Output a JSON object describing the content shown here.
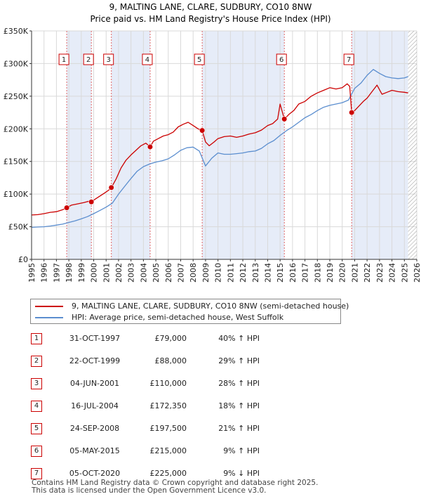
{
  "chart_data": {
    "type": "line",
    "title": "9, MALTING LANE, CLARE, SUDBURY, CO10 8NW",
    "subtitle": "Price paid vs. HM Land Registry's House Price Index (HPI)",
    "xlabel": "",
    "ylabel": "",
    "xlim": [
      1995,
      2026
    ],
    "ylim": [
      0,
      350000
    ],
    "y_ticks": [
      0,
      50000,
      100000,
      150000,
      200000,
      250000,
      300000,
      350000
    ],
    "y_tick_labels": [
      "£0",
      "£50K",
      "£100K",
      "£150K",
      "£200K",
      "£250K",
      "£300K",
      "£350K"
    ],
    "x_ticks": [
      1995,
      1996,
      1997,
      1998,
      1999,
      2000,
      2001,
      2002,
      2003,
      2004,
      2005,
      2006,
      2007,
      2008,
      2009,
      2010,
      2011,
      2012,
      2013,
      2014,
      2015,
      2016,
      2017,
      2018,
      2019,
      2020,
      2021,
      2022,
      2023,
      2024,
      2025,
      2026
    ],
    "grid": true,
    "series": [
      {
        "name": "9, MALTING LANE, CLARE, SUDBURY, CO10 8NW (semi-detached house)",
        "color": "#cc0000",
        "x": [
          1995.0,
          1995.5,
          1996.0,
          1996.5,
          1997.0,
          1997.5,
          1997.83,
          1998.2,
          1998.7,
          1999.2,
          1999.6,
          1999.81,
          2000.1,
          2000.5,
          2000.9,
          2001.2,
          2001.42,
          2001.8,
          2002.2,
          2002.6,
          2003.0,
          2003.4,
          2003.8,
          2004.2,
          2004.54,
          2004.8,
          2005.2,
          2005.6,
          2006.0,
          2006.4,
          2006.8,
          2007.2,
          2007.6,
          2008.0,
          2008.4,
          2008.73,
          2009.0,
          2009.3,
          2009.7,
          2010.0,
          2010.5,
          2011.0,
          2011.5,
          2012.0,
          2012.5,
          2013.0,
          2013.5,
          2014.0,
          2014.4,
          2014.8,
          2015.0,
          2015.34,
          2015.7,
          2016.1,
          2016.5,
          2017.0,
          2017.5,
          2018.0,
          2018.5,
          2019.0,
          2019.5,
          2020.0,
          2020.4,
          2020.6,
          2020.76,
          2021.0,
          2021.3,
          2021.7,
          2022.0,
          2022.4,
          2022.8,
          2023.2,
          2023.6,
          2024.0,
          2024.5,
          2025.0,
          2025.3
        ],
        "y": [
          68000,
          68500,
          70000,
          72000,
          73000,
          76000,
          79000,
          83000,
          85000,
          87000,
          89000,
          88000,
          92000,
          97000,
          102000,
          106000,
          110000,
          123000,
          140000,
          152000,
          160000,
          167000,
          174000,
          178000,
          172350,
          181000,
          185000,
          189000,
          191000,
          195000,
          203000,
          207000,
          210000,
          205000,
          200000,
          197500,
          180000,
          174000,
          180000,
          185000,
          188000,
          189000,
          187000,
          189000,
          192000,
          194000,
          198000,
          205000,
          208000,
          215000,
          238000,
          215000,
          222000,
          228000,
          238000,
          242000,
          250000,
          255000,
          259000,
          263000,
          261000,
          263000,
          269000,
          265000,
          225000,
          228000,
          234000,
          242000,
          247000,
          257000,
          267000,
          253000,
          256000,
          259000,
          257000,
          256000,
          255000
        ]
      },
      {
        "name": "HPI: Average price, semi-detached house, West Suffolk",
        "color": "#5b8ecf",
        "x": [
          1995.0,
          1995.5,
          1996.0,
          1996.5,
          1997.0,
          1997.5,
          1998.0,
          1998.5,
          1999.0,
          1999.5,
          2000.0,
          2000.5,
          2001.0,
          2001.5,
          2002.0,
          2002.5,
          2003.0,
          2003.5,
          2004.0,
          2004.5,
          2005.0,
          2005.5,
          2006.0,
          2006.5,
          2007.0,
          2007.5,
          2008.0,
          2008.5,
          2009.0,
          2009.5,
          2010.0,
          2010.5,
          2011.0,
          2011.5,
          2012.0,
          2012.5,
          2013.0,
          2013.5,
          2014.0,
          2014.5,
          2015.0,
          2015.5,
          2016.0,
          2016.5,
          2017.0,
          2017.5,
          2018.0,
          2018.5,
          2019.0,
          2019.5,
          2020.0,
          2020.5,
          2021.0,
          2021.5,
          2022.0,
          2022.5,
          2023.0,
          2023.5,
          2024.0,
          2024.5,
          2025.0,
          2025.3
        ],
        "y": [
          49000,
          49500,
          50000,
          51000,
          52500,
          54000,
          56500,
          59000,
          62000,
          65500,
          70000,
          75000,
          80000,
          86000,
          100000,
          112000,
          124000,
          135000,
          142000,
          146000,
          149000,
          151000,
          154000,
          160000,
          167000,
          171000,
          172000,
          166000,
          143000,
          155000,
          163000,
          161000,
          161000,
          162000,
          163000,
          165000,
          166000,
          170000,
          177000,
          182000,
          190000,
          197000,
          203000,
          210000,
          217000,
          222000,
          228000,
          233000,
          236000,
          238000,
          240000,
          244000,
          262000,
          270000,
          282000,
          291000,
          285000,
          280000,
          278000,
          277000,
          278000,
          280000
        ]
      }
    ],
    "sales": [
      {
        "label": "1",
        "x": 1997.83,
        "y": 79000
      },
      {
        "label": "2",
        "x": 1999.81,
        "y": 88000
      },
      {
        "label": "3",
        "x": 2001.42,
        "y": 110000
      },
      {
        "label": "4",
        "x": 2004.54,
        "y": 172350
      },
      {
        "label": "5",
        "x": 2008.73,
        "y": 197500
      },
      {
        "label": "6",
        "x": 2015.34,
        "y": 215000
      },
      {
        "label": "7",
        "x": 2020.76,
        "y": 225000
      }
    ],
    "shaded_ranges": [
      [
        1997.83,
        1999.81
      ],
      [
        2001.42,
        2004.54
      ],
      [
        2008.73,
        2015.34
      ],
      [
        2020.76,
        2025.3
      ]
    ],
    "hatched_range": [
      2025.3,
      2026
    ]
  },
  "legend": {
    "property": "9, MALTING LANE, CLARE, SUDBURY, CO10 8NW (semi-detached house)",
    "hpi": "HPI: Average price, semi-detached house, West Suffolk"
  },
  "sales_table": [
    {
      "num": "1",
      "date": "31-OCT-1997",
      "price": "£79,000",
      "hpi": "40% ↑ HPI"
    },
    {
      "num": "2",
      "date": "22-OCT-1999",
      "price": "£88,000",
      "hpi": "29% ↑ HPI"
    },
    {
      "num": "3",
      "date": "04-JUN-2001",
      "price": "£110,000",
      "hpi": "28% ↑ HPI"
    },
    {
      "num": "4",
      "date": "16-JUL-2004",
      "price": "£172,350",
      "hpi": "18% ↑ HPI"
    },
    {
      "num": "5",
      "date": "24-SEP-2008",
      "price": "£197,500",
      "hpi": "21% ↑ HPI"
    },
    {
      "num": "6",
      "date": "05-MAY-2015",
      "price": "£215,000",
      "hpi": "9% ↑ HPI"
    },
    {
      "num": "7",
      "date": "05-OCT-2020",
      "price": "£225,000",
      "hpi": "9% ↓ HPI"
    }
  ],
  "footer": {
    "line1": "Contains HM Land Registry data © Crown copyright and database right 2025.",
    "line2": "This data is licensed under the Open Government Licence v3.0."
  }
}
